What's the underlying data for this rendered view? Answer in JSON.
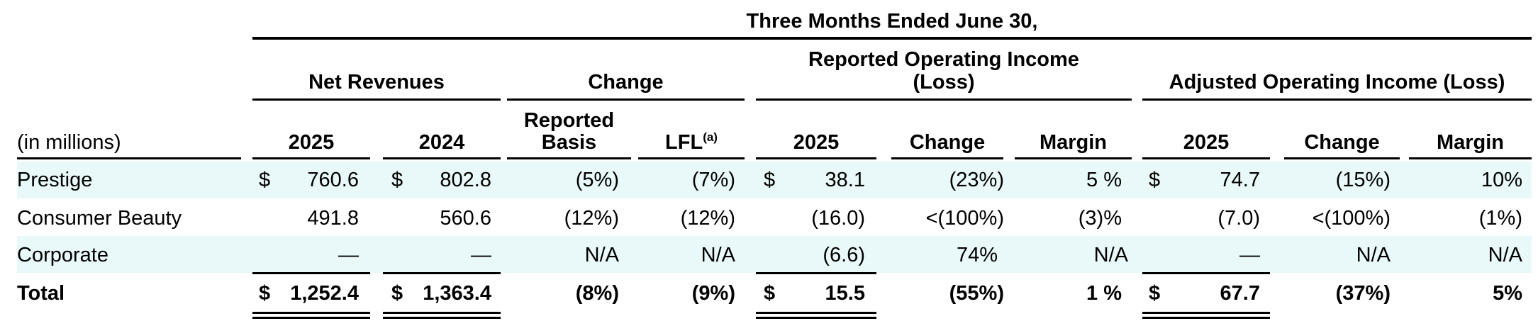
{
  "header": {
    "period": "Three Months Ended June 30,",
    "groups": {
      "net_revenues": "Net Revenues",
      "change": "Change",
      "reported_oi_line1": "Reported Operating Income",
      "reported_oi_line2": "(Loss)",
      "adjusted_oi": "Adjusted Operating Income (Loss)"
    },
    "columns": {
      "units": "(in millions)",
      "nr_2025": "2025",
      "nr_2024": "2024",
      "reported_basis_line1": "Reported",
      "reported_basis_line2": "Basis",
      "lfl": "LFL",
      "lfl_note": "(a)",
      "roi_2025": "2025",
      "roi_change": "Change",
      "roi_margin": "Margin",
      "aoi_2025": "2025",
      "aoi_change": "Change",
      "aoi_margin": "Margin"
    }
  },
  "rows": [
    {
      "label": "Prestige",
      "nr_2025_cur": "$",
      "nr_2025": "760.6",
      "nr_2024_cur": "$",
      "nr_2024": "802.8",
      "chg_reported": "(5%)",
      "chg_lfl": "(7%)",
      "roi_cur": "$",
      "roi_2025": "38.1",
      "roi_change": "(23%)",
      "roi_margin": "5 %",
      "aoi_cur": "$",
      "aoi_2025": "74.7",
      "aoi_change": "(15%)",
      "aoi_margin": "10%"
    },
    {
      "label": "Consumer Beauty",
      "nr_2025_cur": "",
      "nr_2025": "491.8",
      "nr_2024_cur": "",
      "nr_2024": "560.6",
      "chg_reported": "(12%)",
      "chg_lfl": "(12%)",
      "roi_cur": "",
      "roi_2025": "(16.0)",
      "roi_change": "<(100%)",
      "roi_margin": "(3)%",
      "aoi_cur": "",
      "aoi_2025": "(7.0)",
      "aoi_change": "<(100%)",
      "aoi_margin": "(1%)"
    },
    {
      "label": "Corporate",
      "nr_2025_cur": "",
      "nr_2025": "—",
      "nr_2024_cur": "",
      "nr_2024": "—",
      "chg_reported": "N/A",
      "chg_lfl": "N/A",
      "roi_cur": "",
      "roi_2025": "(6.6)",
      "roi_change": "74%",
      "roi_margin": "N/A",
      "aoi_cur": "",
      "aoi_2025": "—",
      "aoi_change": "N/A",
      "aoi_margin": "N/A"
    },
    {
      "label": "Total",
      "nr_2025_cur": "$",
      "nr_2025": "1,252.4",
      "nr_2024_cur": "$",
      "nr_2024": "1,363.4",
      "chg_reported": "(8%)",
      "chg_lfl": "(9%)",
      "roi_cur": "$",
      "roi_2025": "15.5",
      "roi_change": "(55%)",
      "roi_margin": "1 %",
      "aoi_cur": "$",
      "aoi_2025": "67.7",
      "aoi_change": "(37%)",
      "aoi_margin": "5%"
    }
  ],
  "colors": {
    "band": "#e9f8f8",
    "rule": "#000000"
  }
}
